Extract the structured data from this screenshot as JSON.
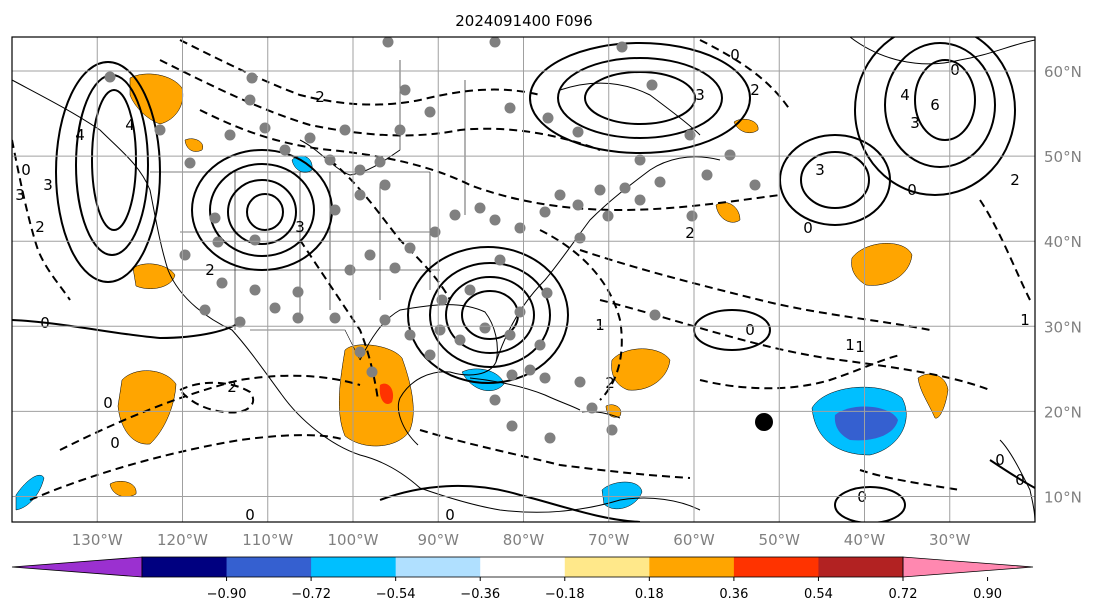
{
  "title": "2024091400 F096",
  "map": {
    "projection": "lat-lon",
    "lon_range": [
      -140,
      -20
    ],
    "lat_range": [
      7,
      64
    ],
    "lon_ticks": [
      "130°W",
      "120°W",
      "110°W",
      "100°W",
      "90°W",
      "80°W",
      "70°W",
      "60°W",
      "50°W",
      "40°W",
      "30°W"
    ],
    "lat_ticks": [
      "10°N",
      "20°N",
      "30°N",
      "40°N",
      "50°N",
      "60°N"
    ],
    "gridlines": true
  },
  "contour_labels": [
    "0",
    "2",
    "3",
    "4",
    "4",
    "2",
    "3",
    "0",
    "1",
    "0",
    "1",
    "2",
    "0",
    "2",
    "3",
    "0",
    "3",
    "6",
    "4",
    "3",
    "0",
    "2",
    "1",
    "0",
    "0",
    "1",
    "0",
    "0",
    "0",
    "2",
    "3",
    "2",
    "0",
    "0",
    "0",
    "2"
  ],
  "colorbar": {
    "ticks": [
      "−0.90",
      "−0.72",
      "−0.54",
      "−0.36",
      "−0.18",
      "0.18",
      "0.36",
      "0.54",
      "0.72",
      "0.90"
    ],
    "colors": [
      "#9b30d0",
      "#000080",
      "#3560d0",
      "#00bfff",
      "#b0e0ff",
      "#ffffff",
      "#ffe88a",
      "#ffa500",
      "#ff3300",
      "#b22222",
      "#ff88b0"
    ],
    "extend": "both"
  },
  "markers": [
    {
      "label": "storm-center",
      "color": "#000000"
    }
  ],
  "fill_colors": {
    "orange": "#ffa500",
    "red": "#ff3300",
    "blue": "#00bfff",
    "dark_blue": "#3560d0"
  }
}
